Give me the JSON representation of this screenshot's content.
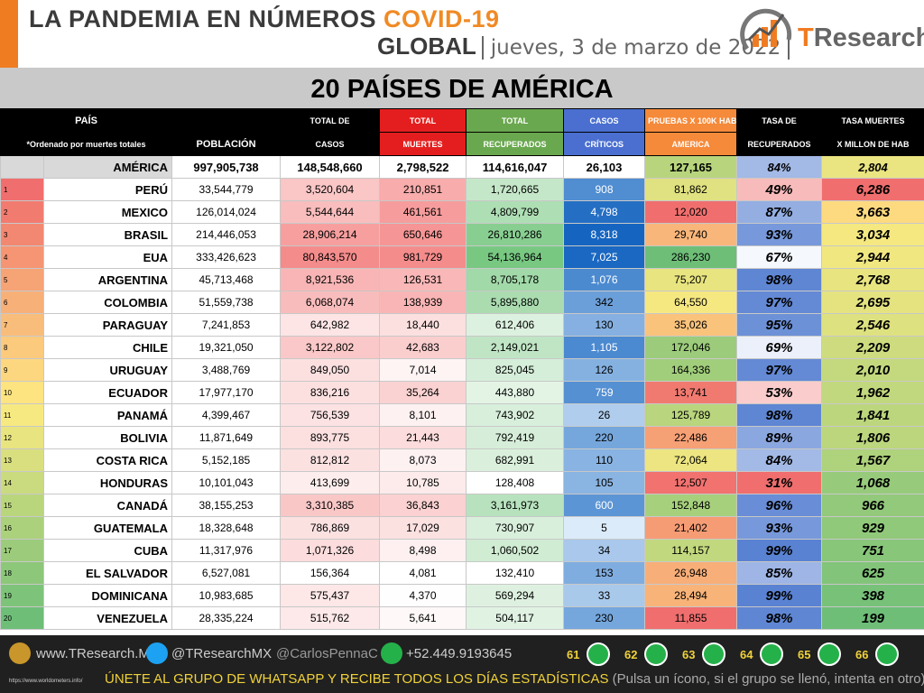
{
  "header": {
    "title": "LA PANDEMIA EN NÚMEROS",
    "title_highlight": "COVID-19",
    "scope": "GLOBAL",
    "date": "jueves, 3 de marzo de 2022",
    "logo_t": "T",
    "logo_rest": "Research"
  },
  "subtitle": "20 PAÍSES DE AMÉRICA",
  "table": {
    "columns": [
      {
        "top": "PAÍS",
        "bottom": "*Ordenado por muertes totales"
      },
      {
        "bottom": "POBLACIÓN"
      },
      {
        "top": "TOTAL DE",
        "bottom": "CASOS"
      },
      {
        "top": "TOTAL",
        "bottom": "MUERTES"
      },
      {
        "top": "TOTAL",
        "bottom": "RECUPERADOS"
      },
      {
        "top": "CASOS",
        "bottom": "CRÍTICOS"
      },
      {
        "top": "PRUEBAS X 100K HAB",
        "bottom": "AMERICA"
      },
      {
        "top": "TASA DE",
        "bottom": "RECUPERADOS"
      },
      {
        "top": "TASA MUERTES",
        "bottom": "X MILLON DE HAB"
      }
    ],
    "total": [
      "AMÉRICA",
      "997,905,738",
      "148,548,660",
      "2,798,522",
      "114,616,047",
      "26,103",
      "127,165",
      "84%",
      "2,804"
    ],
    "rows": [
      [
        "1",
        "PERÚ",
        "33,544,779",
        "3,520,604",
        "210,851",
        "1,720,665",
        "908",
        "81,862",
        "49%",
        "6,286"
      ],
      [
        "2",
        "MEXICO",
        "126,014,024",
        "5,544,644",
        "461,561",
        "4,809,799",
        "4,798",
        "12,020",
        "87%",
        "3,663"
      ],
      [
        "3",
        "BRASIL",
        "214,446,053",
        "28,906,214",
        "650,646",
        "26,810,286",
        "8,318",
        "29,740",
        "93%",
        "3,034"
      ],
      [
        "4",
        "EUA",
        "333,426,623",
        "80,843,570",
        "981,729",
        "54,136,964",
        "7,025",
        "286,230",
        "67%",
        "2,944"
      ],
      [
        "5",
        "ARGENTINA",
        "45,713,468",
        "8,921,536",
        "126,531",
        "8,705,178",
        "1,076",
        "75,207",
        "98%",
        "2,768"
      ],
      [
        "6",
        "COLOMBIA",
        "51,559,738",
        "6,068,074",
        "138,939",
        "5,895,880",
        "342",
        "64,550",
        "97%",
        "2,695"
      ],
      [
        "7",
        "PARAGUAY",
        "7,241,853",
        "642,982",
        "18,440",
        "612,406",
        "130",
        "35,026",
        "95%",
        "2,546"
      ],
      [
        "8",
        "CHILE",
        "19,321,050",
        "3,122,802",
        "42,683",
        "2,149,021",
        "1,105",
        "172,046",
        "69%",
        "2,209"
      ],
      [
        "9",
        "URUGUAY",
        "3,488,769",
        "849,050",
        "7,014",
        "825,045",
        "126",
        "164,336",
        "97%",
        "2,010"
      ],
      [
        "10",
        "ECUADOR",
        "17,977,170",
        "836,216",
        "35,264",
        "443,880",
        "759",
        "13,741",
        "53%",
        "1,962"
      ],
      [
        "11",
        "PANAMÁ",
        "4,399,467",
        "756,539",
        "8,101",
        "743,902",
        "26",
        "125,789",
        "98%",
        "1,841"
      ],
      [
        "12",
        "BOLIVIA",
        "11,871,649",
        "893,775",
        "21,443",
        "792,419",
        "220",
        "22,486",
        "89%",
        "1,806"
      ],
      [
        "13",
        "COSTA RICA",
        "5,152,185",
        "812,812",
        "8,073",
        "682,991",
        "110",
        "72,064",
        "84%",
        "1,567"
      ],
      [
        "14",
        "HONDURAS",
        "10,101,043",
        "413,699",
        "10,785",
        "128,408",
        "105",
        "12,507",
        "31%",
        "1,068"
      ],
      [
        "15",
        "CANADÁ",
        "38,155,253",
        "3,310,385",
        "36,843",
        "3,161,973",
        "600",
        "152,848",
        "96%",
        "966"
      ],
      [
        "16",
        "GUATEMALA",
        "18,328,648",
        "786,869",
        "17,029",
        "730,907",
        "5",
        "21,402",
        "93%",
        "929"
      ],
      [
        "17",
        "CUBA",
        "11,317,976",
        "1,071,326",
        "8,498",
        "1,060,502",
        "34",
        "114,157",
        "99%",
        "751"
      ],
      [
        "18",
        "EL SALVADOR",
        "6,527,081",
        "156,364",
        "4,081",
        "132,410",
        "153",
        "26,948",
        "85%",
        "625"
      ],
      [
        "19",
        "DOMINICANA",
        "10,983,685",
        "575,437",
        "4,370",
        "569,294",
        "33",
        "28,494",
        "99%",
        "398"
      ],
      [
        "20",
        "VENEZUELA",
        "28,335,224",
        "515,762",
        "5,641",
        "504,117",
        "230",
        "11,855",
        "98%",
        "199"
      ]
    ]
  },
  "footer": {
    "website": "www.TResearch.Mx",
    "twitter": "@TResearchMX",
    "twitter2": "@CarlosPennaC",
    "phone": "+52.449.9193645",
    "groups": [
      "61",
      "62",
      "63",
      "64",
      "65",
      "66"
    ],
    "source": "https://www.worldometers.info/",
    "cta": "ÚNETE AL GRUPO DE WHATSAPP Y RECIBE TODOS LOS DÍAS ESTADÍSTICAS",
    "cta_note": "(Pulsa un ícono, si el grupo se llenó, intenta en otro)"
  }
}
